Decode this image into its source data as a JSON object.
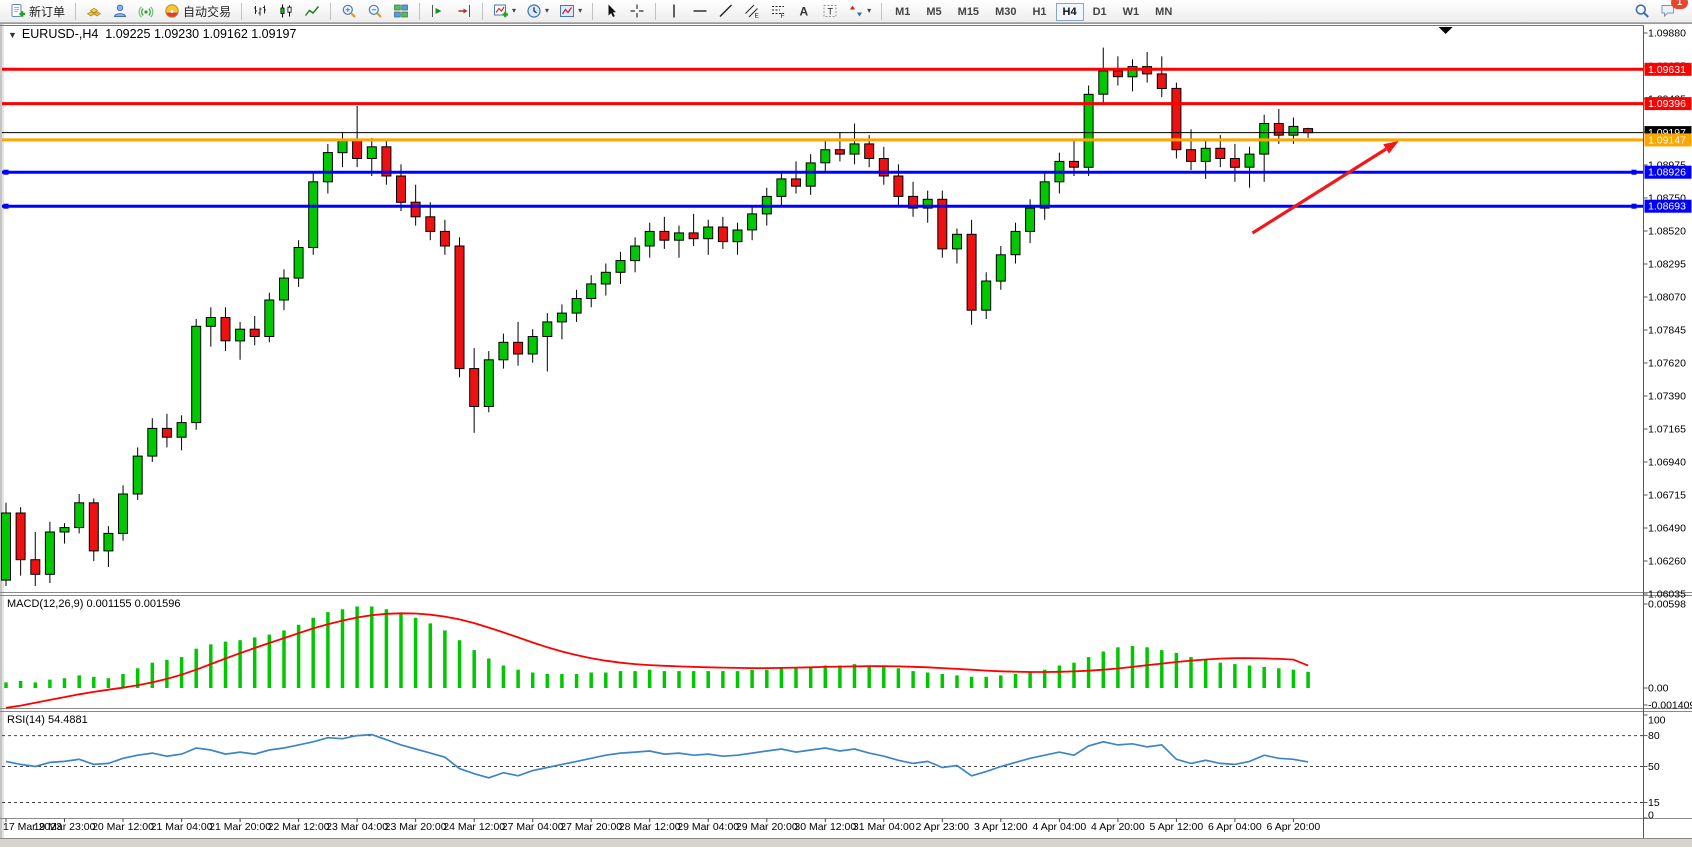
{
  "toolbar": {
    "new_order_label": "新订单",
    "autotrade_label": "自动交易",
    "timeframes": [
      "M1",
      "M5",
      "M15",
      "M30",
      "H1",
      "H4",
      "D1",
      "W1",
      "MN"
    ],
    "active_timeframe": "H4",
    "notification_count": "1"
  },
  "chart": {
    "title_symbol": "EURUSD-,H4",
    "title_ohlc": "1.09225 1.09230 1.09162 1.09197",
    "colors": {
      "bull": "#00C800",
      "bear": "#EE1111",
      "wick": "#000000",
      "background": "#ffffff",
      "axis_text": "#000000",
      "arrow": "#F01818"
    },
    "price_axis_ticks": [
      "1.09880",
      "1.09655",
      "1.09425",
      "1.09200",
      "1.08975",
      "1.08750",
      "1.08520",
      "1.08295",
      "1.08070",
      "1.07845",
      "1.07620",
      "1.07390",
      "1.07165",
      "1.06940",
      "1.06715",
      "1.06490",
      "1.06260",
      "1.06035"
    ],
    "price_lines": [
      {
        "price": 1.09631,
        "label": "1.09631",
        "color": "#FF0000",
        "width": 3,
        "handles": false
      },
      {
        "price": 1.09396,
        "label": "1.09396",
        "color": "#FF0000",
        "width": 3,
        "handles": false
      },
      {
        "price": 1.09197,
        "label": "1.09197",
        "color": "#000000",
        "width": 1,
        "handles": false
      },
      {
        "price": 1.09147,
        "label": "1.09147",
        "color": "#FFA500",
        "width": 3,
        "handles": false
      },
      {
        "price": 1.08926,
        "label": "1.08926",
        "color": "#0000FF",
        "width": 3,
        "handles": true
      },
      {
        "price": 1.08693,
        "label": "1.08693",
        "color": "#0000FF",
        "width": 3,
        "handles": true
      }
    ],
    "trend_arrow": {
      "from_index": 85.2,
      "from_price": 1.08509,
      "to_index": 95.2,
      "to_price": 1.0914,
      "color": "#F01818"
    },
    "shift_marker_index": 98.4,
    "date_labels": [
      "17 Mar 2023",
      "19 Mar 23:00",
      "20 Mar 12:00",
      "21 Mar 04:00",
      "21 Mar 20:00",
      "22 Mar 12:00",
      "23 Mar 04:00",
      "23 Mar 20:00",
      "24 Mar 12:00",
      "27 Mar 04:00",
      "27 Mar 20:00",
      "28 Mar 12:00",
      "29 Mar 04:00",
      "29 Mar 20:00",
      "30 Mar 12:00",
      "31 Mar 04:00",
      "2 Apr 23:00",
      "3 Apr 12:00",
      "4 Apr 04:00",
      "4 Apr 20:00",
      "5 Apr 12:00",
      "6 Apr 04:00",
      "6 Apr 20:00"
    ],
    "candles": [
      [
        1.0613,
        1.0666,
        1.0609,
        1.0659
      ],
      [
        1.0659,
        1.0663,
        1.0616,
        1.0627
      ],
      [
        1.0627,
        1.0646,
        1.0609,
        1.0617
      ],
      [
        1.0617,
        1.0653,
        1.0611,
        1.0646
      ],
      [
        1.0646,
        1.0652,
        1.0638,
        1.0649
      ],
      [
        1.0649,
        1.0672,
        1.0645,
        1.0666
      ],
      [
        1.0666,
        1.0669,
        1.0626,
        1.0633
      ],
      [
        1.0633,
        1.065,
        1.0622,
        1.0645
      ],
      [
        1.0645,
        1.0678,
        1.064,
        1.0672
      ],
      [
        1.0672,
        1.0704,
        1.0668,
        1.0698
      ],
      [
        1.0698,
        1.0724,
        1.0694,
        1.0717
      ],
      [
        1.0717,
        1.0727,
        1.0704,
        1.0711
      ],
      [
        1.0711,
        1.0726,
        1.0702,
        1.0721
      ],
      [
        1.0721,
        1.0792,
        1.0716,
        1.0787
      ],
      [
        1.0787,
        1.08,
        1.0773,
        1.0793
      ],
      [
        1.0793,
        1.08,
        1.077,
        1.0777
      ],
      [
        1.0777,
        1.079,
        1.0764,
        1.0785
      ],
      [
        1.0785,
        1.0794,
        1.0774,
        1.078
      ],
      [
        1.078,
        1.081,
        1.0776,
        1.0805
      ],
      [
        1.0805,
        1.0826,
        1.0798,
        1.082
      ],
      [
        1.082,
        1.0846,
        1.0814,
        1.0841
      ],
      [
        1.0841,
        1.0892,
        1.0836,
        1.0886
      ],
      [
        1.0886,
        1.0912,
        1.0878,
        1.0906
      ],
      [
        1.0906,
        1.092,
        1.0896,
        1.0914
      ],
      [
        1.0914,
        1.0938,
        1.0896,
        1.0902
      ],
      [
        1.0902,
        1.0916,
        1.089,
        1.091
      ],
      [
        1.091,
        1.0915,
        1.0884,
        1.089
      ],
      [
        1.089,
        1.0898,
        1.0866,
        1.0872
      ],
      [
        1.0872,
        1.0884,
        1.0856,
        1.0862
      ],
      [
        1.0862,
        1.0872,
        1.0846,
        1.0852
      ],
      [
        1.0852,
        1.086,
        1.0836,
        1.0842
      ],
      [
        1.0842,
        1.0848,
        1.0752,
        1.0758
      ],
      [
        1.0758,
        1.0772,
        1.0714,
        1.0732
      ],
      [
        1.0732,
        1.077,
        1.0728,
        1.0764
      ],
      [
        1.0764,
        1.0782,
        1.0758,
        1.0776
      ],
      [
        1.0776,
        1.079,
        1.076,
        1.0768
      ],
      [
        1.0768,
        1.0785,
        1.0762,
        1.078
      ],
      [
        1.078,
        1.0796,
        1.0756,
        1.079
      ],
      [
        1.079,
        1.0802,
        1.0778,
        1.0796
      ],
      [
        1.0796,
        1.0812,
        1.079,
        1.0806
      ],
      [
        1.0806,
        1.0822,
        1.08,
        1.0816
      ],
      [
        1.0816,
        1.083,
        1.0808,
        1.0824
      ],
      [
        1.0824,
        1.0838,
        1.0816,
        1.0832
      ],
      [
        1.0832,
        1.0848,
        1.0824,
        1.0842
      ],
      [
        1.0842,
        1.0858,
        1.0834,
        1.0852
      ],
      [
        1.0852,
        1.0862,
        1.084,
        1.0846
      ],
      [
        1.0846,
        1.0856,
        1.0834,
        1.0851
      ],
      [
        1.0851,
        1.0864,
        1.0842,
        1.0847
      ],
      [
        1.0847,
        1.086,
        1.0836,
        1.0855
      ],
      [
        1.0855,
        1.0862,
        1.084,
        1.0845
      ],
      [
        1.0845,
        1.0858,
        1.0836,
        1.0853
      ],
      [
        1.0853,
        1.087,
        1.0846,
        1.0864
      ],
      [
        1.0864,
        1.0882,
        1.0856,
        1.0876
      ],
      [
        1.0876,
        1.0893,
        1.087,
        1.0888
      ],
      [
        1.0888,
        1.09,
        1.0878,
        1.0883
      ],
      [
        1.0883,
        1.0905,
        1.0877,
        1.0899
      ],
      [
        1.0899,
        1.0914,
        1.0892,
        1.0908
      ],
      [
        1.0908,
        1.092,
        1.09,
        1.0905
      ],
      [
        1.0905,
        1.0926,
        1.0898,
        1.0912
      ],
      [
        1.0912,
        1.0918,
        1.0896,
        1.0902
      ],
      [
        1.0902,
        1.091,
        1.0884,
        1.089
      ],
      [
        1.089,
        1.0898,
        1.087,
        1.0876
      ],
      [
        1.0876,
        1.0886,
        1.0862,
        1.0868
      ],
      [
        1.0868,
        1.088,
        1.0858,
        1.0874
      ],
      [
        1.0874,
        1.088,
        1.0834,
        1.084
      ],
      [
        1.084,
        1.0854,
        1.083,
        1.085
      ],
      [
        1.085,
        1.086,
        1.0788,
        1.0798
      ],
      [
        1.0798,
        1.0824,
        1.0792,
        1.0818
      ],
      [
        1.0818,
        1.0842,
        1.0812,
        1.0836
      ],
      [
        1.0836,
        1.0858,
        1.083,
        1.0852
      ],
      [
        1.0852,
        1.0874,
        1.0844,
        1.0868
      ],
      [
        1.0868,
        1.0892,
        1.086,
        1.0886
      ],
      [
        1.0886,
        1.0906,
        1.0878,
        1.09
      ],
      [
        1.09,
        1.0914,
        1.089,
        1.0896
      ],
      [
        1.0896,
        1.0952,
        1.089,
        1.0946
      ],
      [
        1.0946,
        1.0978,
        1.094,
        1.0962
      ],
      [
        1.0962,
        1.0972,
        1.0952,
        1.0958
      ],
      [
        1.0958,
        1.097,
        1.0948,
        1.0965
      ],
      [
        1.0965,
        1.0975,
        1.0954,
        1.096
      ],
      [
        1.096,
        1.0972,
        1.0944,
        1.095
      ],
      [
        1.095,
        1.0954,
        1.0902,
        1.0908
      ],
      [
        1.0908,
        1.0922,
        1.0894,
        1.09
      ],
      [
        1.09,
        1.0914,
        1.0888,
        1.0909
      ],
      [
        1.0909,
        1.0918,
        1.0896,
        1.0902
      ],
      [
        1.0902,
        1.0912,
        1.0886,
        1.0896
      ],
      [
        1.0896,
        1.091,
        1.0882,
        1.0905
      ],
      [
        1.0905,
        1.0932,
        1.0886,
        1.0926
      ],
      [
        1.0926,
        1.0936,
        1.0912,
        1.0918
      ],
      [
        1.0918,
        1.093,
        1.0912,
        1.0924
      ],
      [
        1.09225,
        1.0923,
        1.09162,
        1.09197
      ]
    ]
  },
  "macd": {
    "label": "MACD(12,26,9)",
    "values": "0.001155 0.001596",
    "axis_labels": [
      {
        "text": "0.00598",
        "value": 0.00598
      },
      {
        "text": "0.00",
        "value": 0
      },
      {
        "text": "-0.001409",
        "value": -0.001409
      }
    ],
    "histogram_color": "#00C800",
    "signal_color": "#FF0000",
    "histogram": [
      0.0004,
      0.0005,
      0.0004,
      0.0006,
      0.0007,
      0.0009,
      0.0008,
      0.0007,
      0.001,
      0.0014,
      0.0018,
      0.002,
      0.0022,
      0.0028,
      0.0031,
      0.0033,
      0.0034,
      0.0036,
      0.0038,
      0.0041,
      0.0045,
      0.005,
      0.0054,
      0.0056,
      0.0058,
      0.0058,
      0.0056,
      0.0053,
      0.005,
      0.0046,
      0.0041,
      0.0034,
      0.0027,
      0.0021,
      0.0016,
      0.0013,
      0.0011,
      0.001,
      0.001,
      0.001,
      0.0011,
      0.0011,
      0.0012,
      0.0012,
      0.0013,
      0.0012,
      0.0012,
      0.0012,
      0.0012,
      0.0012,
      0.0012,
      0.0013,
      0.0013,
      0.0014,
      0.0014,
      0.0015,
      0.0016,
      0.0016,
      0.0017,
      0.0016,
      0.0015,
      0.0014,
      0.0012,
      0.0011,
      0.001,
      0.0009,
      0.0008,
      0.0008,
      0.0009,
      0.001,
      0.0011,
      0.0013,
      0.0016,
      0.0018,
      0.0022,
      0.0026,
      0.0029,
      0.003,
      0.0029,
      0.0027,
      0.0025,
      0.0022,
      0.002,
      0.0018,
      0.0017,
      0.0016,
      0.0015,
      0.0014,
      0.0013,
      0.001155
    ],
    "signal": [
      -0.00141,
      -0.00125,
      -0.00105,
      -0.00085,
      -0.00065,
      -0.00045,
      -0.00028,
      -0.00012,
      2e-05,
      0.0002,
      0.0004,
      0.00065,
      0.00095,
      0.0013,
      0.0017,
      0.0021,
      0.00248,
      0.00285,
      0.0032,
      0.00355,
      0.0039,
      0.00424,
      0.00454,
      0.0048,
      0.00502,
      0.00518,
      0.00528,
      0.00532,
      0.0053,
      0.00522,
      0.00508,
      0.00488,
      0.00462,
      0.0043,
      0.00396,
      0.0036,
      0.00324,
      0.0029,
      0.0026,
      0.00234,
      0.00212,
      0.00194,
      0.0018,
      0.0017,
      0.00163,
      0.00158,
      0.00154,
      0.0015,
      0.00147,
      0.00145,
      0.00143,
      0.00142,
      0.00142,
      0.00143,
      0.00145,
      0.00147,
      0.0015,
      0.00152,
      0.00154,
      0.00155,
      0.00155,
      0.00154,
      0.00151,
      0.00147,
      0.00142,
      0.00136,
      0.0013,
      0.00124,
      0.00119,
      0.00116,
      0.00114,
      0.00114,
      0.00115,
      0.00118,
      0.00123,
      0.0013,
      0.00139,
      0.0015,
      0.00162,
      0.00174,
      0.00185,
      0.00195,
      0.00203,
      0.00209,
      0.00212,
      0.00213,
      0.00211,
      0.00207,
      0.00202,
      0.001596
    ]
  },
  "rsi": {
    "label": "RSI(14)",
    "value": "54.4881",
    "line_color": "#3D85C8",
    "levels": [
      80,
      50,
      15
    ],
    "axis_labels": [
      {
        "text": "100",
        "value": 100
      },
      {
        "text": "80",
        "value": 80
      },
      {
        "text": "50",
        "value": 50
      },
      {
        "text": "15",
        "value": 15
      },
      {
        "text": "0",
        "value": 0
      }
    ],
    "series": [
      55,
      52,
      50,
      54,
      55,
      57,
      52,
      53,
      58,
      61,
      63,
      60,
      62,
      68,
      66,
      62,
      64,
      62,
      66,
      68,
      71,
      74,
      78,
      77,
      80,
      81,
      76,
      71,
      67,
      63,
      59,
      48,
      43,
      39,
      44,
      41,
      46,
      49,
      52,
      55,
      58,
      61,
      63,
      64,
      65,
      62,
      63,
      61,
      62,
      60,
      61,
      63,
      65,
      67,
      64,
      66,
      68,
      65,
      67,
      63,
      60,
      56,
      53,
      55,
      49,
      51,
      41,
      45,
      50,
      54,
      58,
      61,
      64,
      61,
      70,
      74,
      71,
      72,
      69,
      71,
      57,
      53,
      56,
      53,
      52,
      55,
      61,
      58,
      57,
      54.4881
    ]
  }
}
